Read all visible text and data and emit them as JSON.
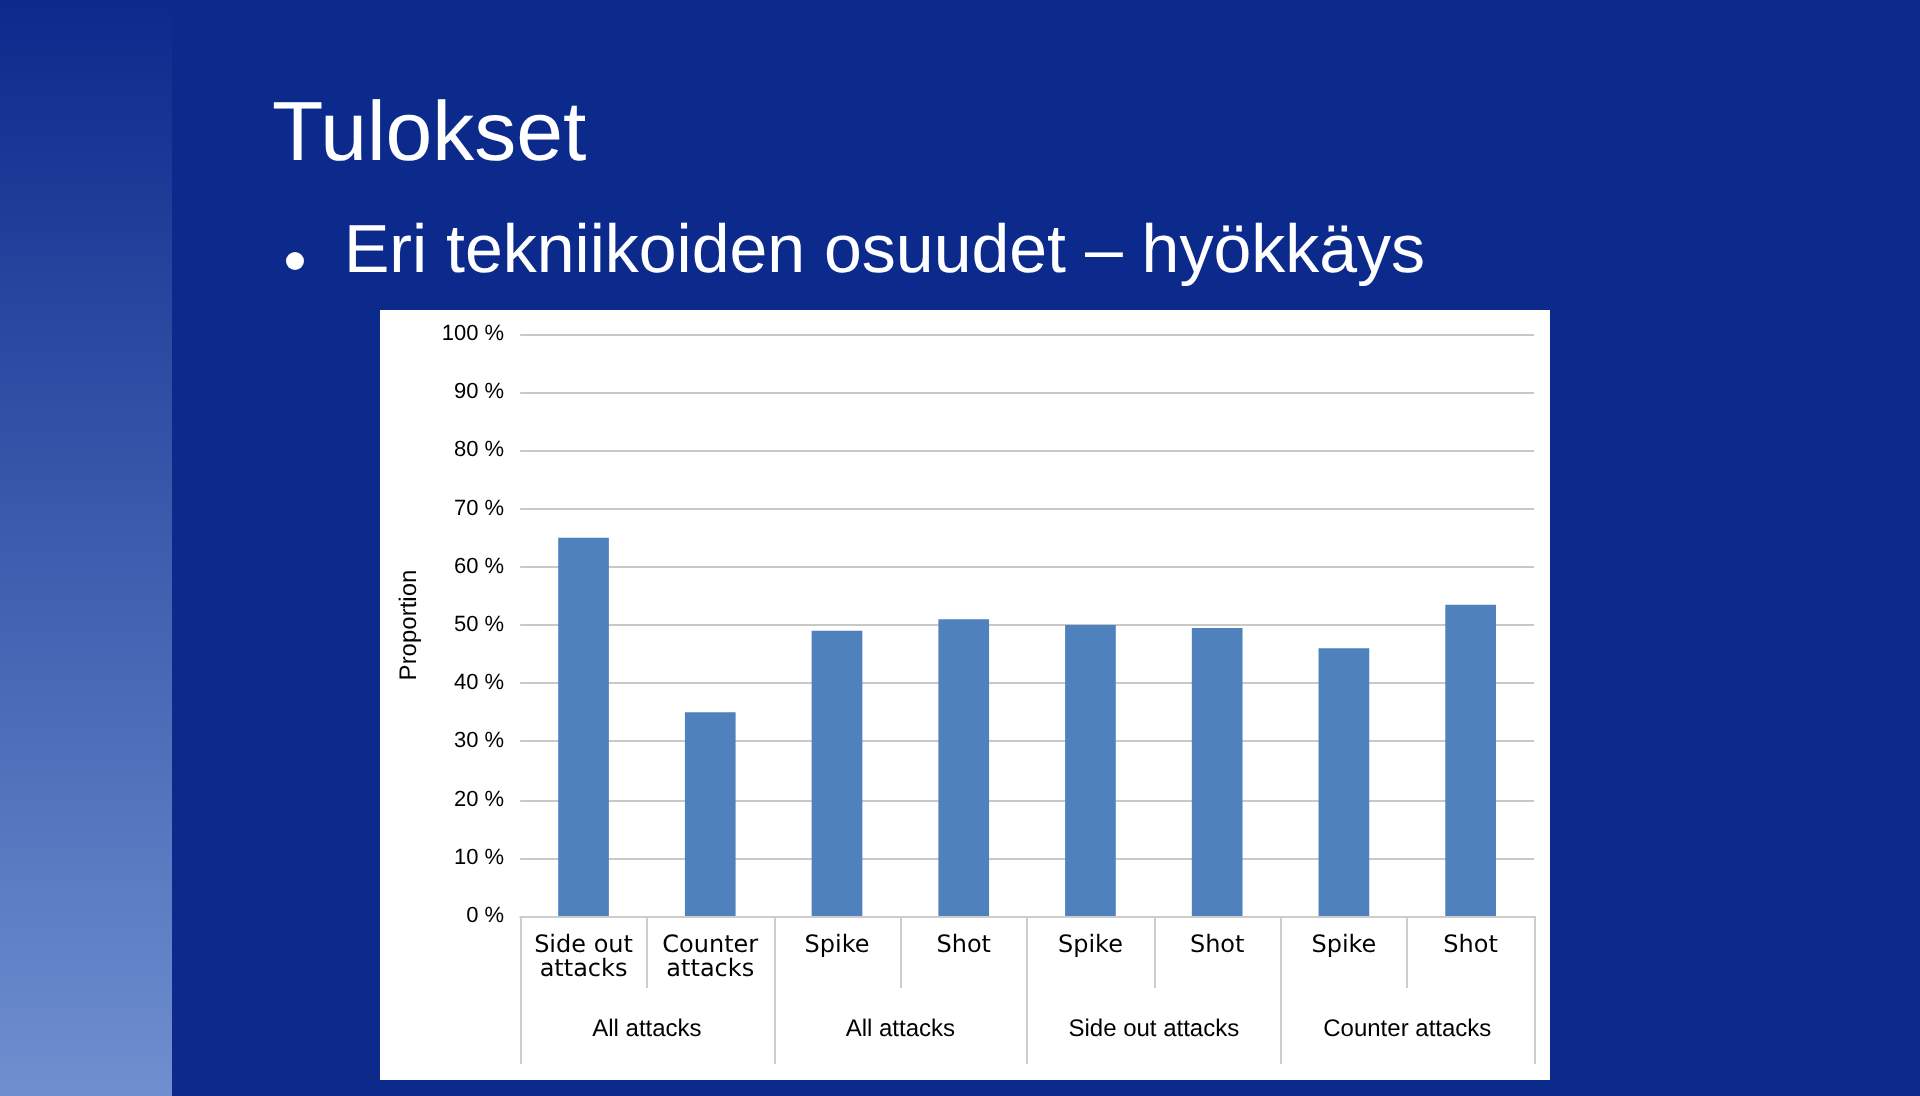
{
  "chart_data": {
    "type": "bar",
    "title": "Tulokset",
    "subtitle": "Eri tekniikoiden osuudet – hyökkäys",
    "ylabel": "Proportion",
    "categories": [
      "Side out attacks",
      "Counter attacks",
      "Spike",
      "Shot",
      "Spike",
      "Shot",
      "Spike",
      "Shot"
    ],
    "values": [
      65,
      35,
      49,
      51,
      50,
      49.5,
      46,
      53.5
    ],
    "color": "#4f81bd",
    "ylim": [
      0,
      100
    ],
    "yticks": [
      {
        "value": 0,
        "label": "0 %"
      },
      {
        "value": 10,
        "label": "10 %"
      },
      {
        "value": 20,
        "label": "20 %"
      },
      {
        "value": 30,
        "label": "30 %"
      },
      {
        "value": 40,
        "label": "40 %"
      },
      {
        "value": 50,
        "label": "50 %"
      },
      {
        "value": 60,
        "label": "60 %"
      },
      {
        "value": 70,
        "label": "70 %"
      },
      {
        "value": 80,
        "label": "80 %"
      },
      {
        "value": 90,
        "label": "90 %"
      },
      {
        "value": 100,
        "label": "100 %"
      }
    ],
    "annotations": [
      "All attacks",
      "All attacks",
      "Side out attacks",
      "Counter attacks"
    ],
    "grid": "y"
  }
}
